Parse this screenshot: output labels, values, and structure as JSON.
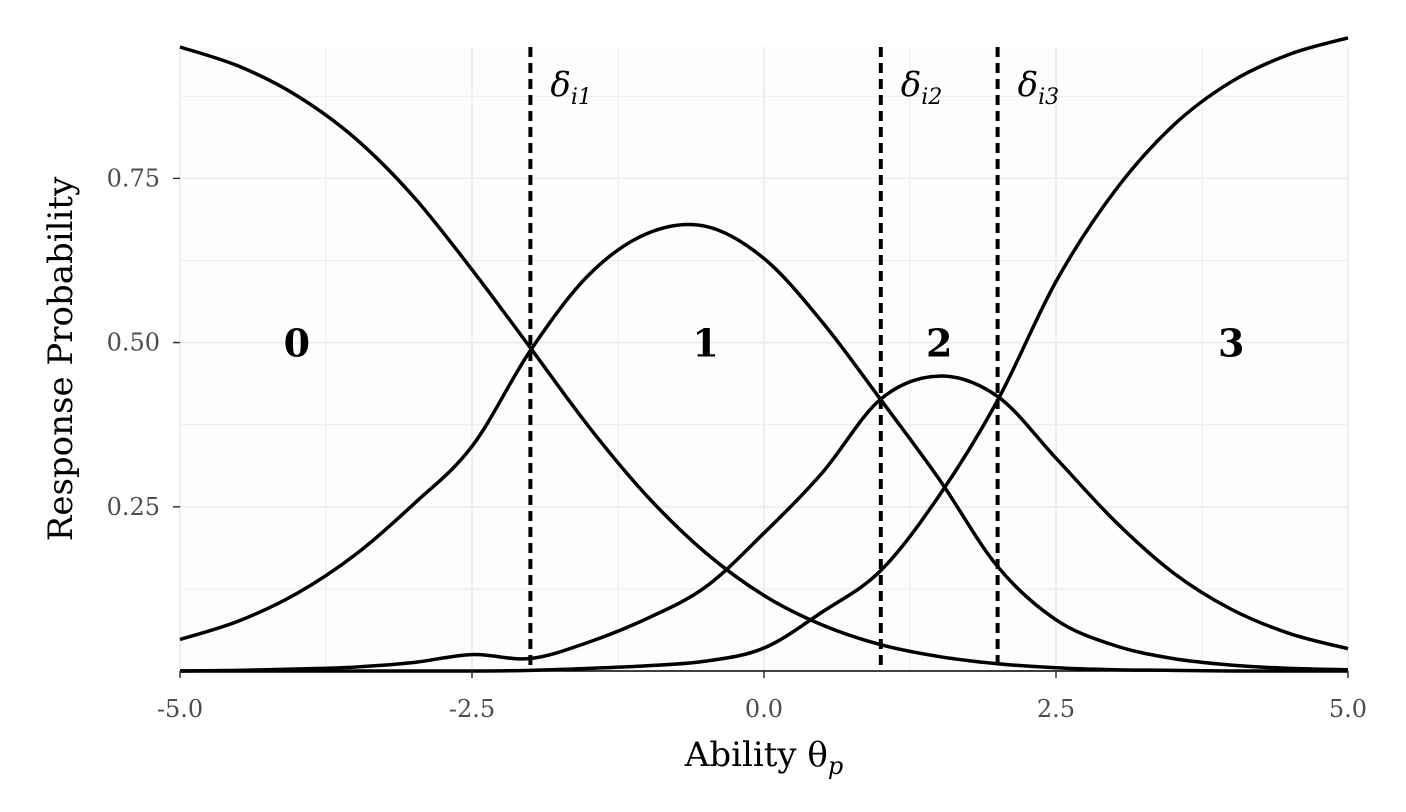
{
  "chart_data": {
    "type": "line",
    "xlabel": "Ability θ",
    "xlabel_sub": "p",
    "ylabel": "Response Probability",
    "xlim": [
      -5.0,
      5.0
    ],
    "ylim": [
      0,
      0.95
    ],
    "x_ticks": [
      -5.0,
      -2.5,
      0.0,
      2.5,
      5.0
    ],
    "x_tick_labels": [
      "-5.0",
      "-2.5",
      "0.0",
      "2.5",
      "5.0"
    ],
    "y_ticks": [
      0.25,
      0.5,
      0.75
    ],
    "y_tick_labels": [
      "0.25",
      "0.50",
      "0.75"
    ],
    "y_minor_ticks": [
      0.125,
      0.375,
      0.625,
      0.875
    ],
    "x_minor_ticks": [
      -3.75,
      -1.25,
      1.25,
      3.75
    ],
    "grid": true,
    "colors": {
      "panel": "#fdfdfb",
      "grid": "#ebebeb",
      "line": "#000000"
    },
    "thresholds": [
      {
        "value": -2.0,
        "symbol": "δ",
        "sub": "i1"
      },
      {
        "value": 1.0,
        "symbol": "δ",
        "sub": "i2"
      },
      {
        "value": 2.0,
        "symbol": "δ",
        "sub": "i3"
      }
    ],
    "series": [
      {
        "category": "0",
        "label_x": -4.0,
        "label_y": 0.5
      },
      {
        "category": "1",
        "label_x": -0.5,
        "label_y": 0.5
      },
      {
        "category": "2",
        "label_x": 1.5,
        "label_y": 0.5
      },
      {
        "category": "3",
        "label_x": 4.0,
        "label_y": 0.5
      }
    ],
    "x_samples": [
      -5.0,
      -4.5,
      -4.0,
      -3.5,
      -3.0,
      -2.5,
      -2.0,
      -1.5,
      -1.0,
      -0.5,
      0.0,
      0.5,
      1.0,
      1.5,
      2.0,
      2.5,
      3.0,
      3.5,
      4.0,
      4.5,
      5.0
    ],
    "series_values": [
      [
        0.95,
        0.921,
        0.876,
        0.811,
        0.722,
        0.611,
        0.492,
        0.372,
        0.266,
        0.18,
        0.115,
        0.07,
        0.04,
        0.022,
        0.011,
        0.005,
        0.002,
        0.001,
        0.0,
        0.0,
        0.0
      ],
      [
        0.048,
        0.076,
        0.118,
        0.177,
        0.254,
        0.342,
        0.488,
        0.603,
        0.666,
        0.677,
        0.628,
        0.531,
        0.413,
        0.292,
        0.159,
        0.078,
        0.039,
        0.019,
        0.009,
        0.004,
        0.002
      ],
      [
        0.0,
        0.001,
        0.003,
        0.006,
        0.013,
        0.025,
        0.019,
        0.044,
        0.08,
        0.128,
        0.21,
        0.302,
        0.414,
        0.449,
        0.418,
        0.324,
        0.229,
        0.15,
        0.094,
        0.057,
        0.034
      ],
      [
        0.0,
        0.0,
        0.0,
        0.0,
        0.0,
        0.0,
        0.001,
        0.004,
        0.008,
        0.015,
        0.035,
        0.09,
        0.153,
        0.267,
        0.412,
        0.593,
        0.73,
        0.83,
        0.897,
        0.939,
        0.964
      ]
    ]
  }
}
